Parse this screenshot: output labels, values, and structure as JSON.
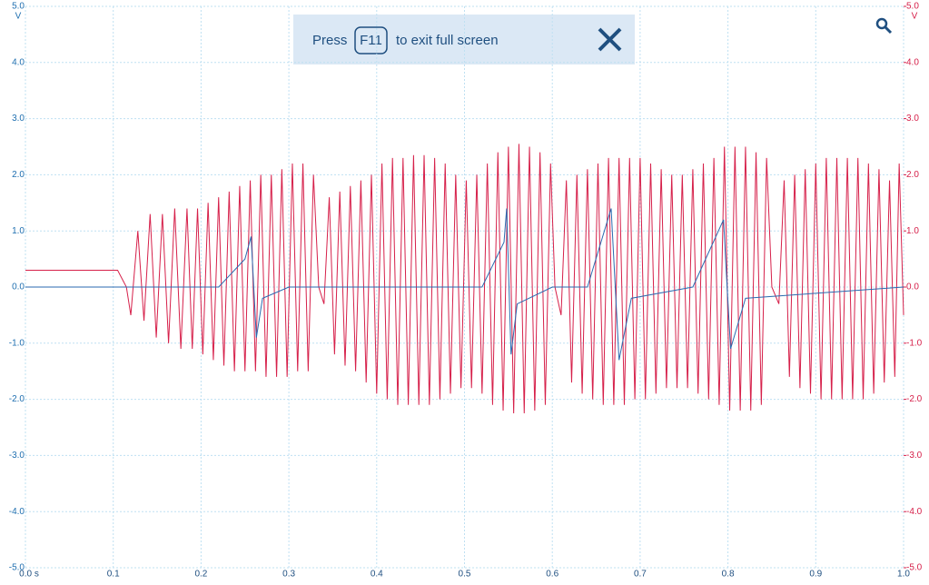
{
  "chart_data": {
    "type": "line",
    "xlim": [
      0,
      1
    ],
    "xticks": [
      {
        "value": 0,
        "label": "0.0 s"
      },
      0.1,
      0.2,
      0.3,
      0.4,
      0.5,
      0.6,
      0.7,
      0.8,
      0.9,
      {
        "value": 1,
        "label": "1.0"
      }
    ],
    "ylim": [
      -5,
      5
    ],
    "yticks": [
      {
        "value": 5,
        "label": "5.0"
      },
      {
        "value": 4,
        "label": "4.0"
      },
      {
        "value": 3,
        "label": "3.0"
      },
      {
        "value": 2,
        "label": "2.0"
      },
      {
        "value": 1,
        "label": "1.0"
      },
      {
        "value": 0,
        "label": "0.0"
      },
      {
        "value": -1,
        "label": "-1.0"
      },
      {
        "value": -2,
        "label": "-2.0"
      },
      {
        "value": -3,
        "label": "-3.0"
      },
      {
        "value": -4,
        "label": "-4.0"
      },
      {
        "value": -5,
        "label": "-5.0"
      }
    ],
    "y2lim": [
      -5,
      5
    ],
    "y2ticks": [
      {
        "value": 5,
        "label": "5.0"
      },
      {
        "value": 4,
        "label": "4.0"
      },
      {
        "value": 3,
        "label": "3.0"
      },
      {
        "value": 2,
        "label": "2.0"
      },
      {
        "value": 1,
        "label": "1.0"
      },
      {
        "value": 0,
        "label": "0.0"
      },
      {
        "value": -1,
        "label": "-1.0"
      },
      {
        "value": -2,
        "label": "-2.0"
      },
      {
        "value": -3,
        "label": "-3.0"
      },
      {
        "value": -4,
        "label": "-4.0"
      },
      {
        "value": -5,
        "label": "-5.0"
      }
    ],
    "y_unit": "V",
    "y2_unit": "V",
    "grid": true,
    "series": [
      {
        "color": "#d6204a",
        "axis": "y2",
        "x": [
          0,
          0.1,
          0.105,
          0.115,
          0.12,
          0.128,
          0.135,
          0.142,
          0.149,
          0.156,
          0.163,
          0.17,
          0.177,
          0.184,
          0.19,
          0.196,
          0.202,
          0.208,
          0.214,
          0.22,
          0.226,
          0.232,
          0.238,
          0.244,
          0.25,
          0.256,
          0.262,
          0.268,
          0.274,
          0.28,
          0.286,
          0.292,
          0.298,
          0.304,
          0.31,
          0.316,
          0.322,
          0.328,
          0.334,
          0.34,
          0.346,
          0.352,
          0.358,
          0.364,
          0.37,
          0.376,
          0.382,
          0.388,
          0.394,
          0.4,
          0.406,
          0.412,
          0.418,
          0.424,
          0.43,
          0.436,
          0.442,
          0.448,
          0.454,
          0.46,
          0.466,
          0.472,
          0.478,
          0.484,
          0.49,
          0.496,
          0.502,
          0.508,
          0.514,
          0.52,
          0.526,
          0.532,
          0.538,
          0.544,
          0.55,
          0.556,
          0.562,
          0.568,
          0.574,
          0.58,
          0.586,
          0.592,
          0.598,
          0.603,
          0.61,
          0.616,
          0.622,
          0.628,
          0.634,
          0.64,
          0.646,
          0.652,
          0.658,
          0.664,
          0.67,
          0.676,
          0.682,
          0.688,
          0.694,
          0.7,
          0.706,
          0.712,
          0.718,
          0.724,
          0.73,
          0.736,
          0.742,
          0.748,
          0.754,
          0.76,
          0.766,
          0.772,
          0.778,
          0.784,
          0.79,
          0.796,
          0.802,
          0.808,
          0.814,
          0.82,
          0.826,
          0.832,
          0.838,
          0.844,
          0.85,
          0.858,
          0.864,
          0.87,
          0.876,
          0.882,
          0.888,
          0.894,
          0.9,
          0.906,
          0.912,
          0.918,
          0.924,
          0.93,
          0.936,
          0.942,
          0.948,
          0.954,
          0.96,
          0.966,
          0.972,
          0.978,
          0.984,
          0.99,
          0.995,
          1.0
        ],
        "values": [
          0.3,
          0.3,
          0.3,
          0,
          -0.5,
          1.0,
          -0.6,
          1.3,
          -0.9,
          1.3,
          -1.0,
          1.4,
          -1.1,
          1.4,
          -1.1,
          1.4,
          -1.2,
          1.5,
          -1.3,
          1.6,
          -1.4,
          1.7,
          -1.5,
          1.8,
          -1.5,
          1.9,
          -1.5,
          2.0,
          -1.6,
          2.0,
          -1.6,
          2.1,
          -1.6,
          2.2,
          -1.5,
          2.2,
          -1.5,
          2.0,
          0,
          -0.3,
          1.6,
          -1.2,
          1.7,
          -1.4,
          1.8,
          -1.5,
          1.9,
          -1.7,
          2.0,
          -1.9,
          2.2,
          -2.0,
          2.3,
          -2.1,
          2.3,
          -2.1,
          2.35,
          -2.1,
          2.35,
          -2.1,
          2.3,
          -2.0,
          2.2,
          -1.9,
          2.0,
          -1.8,
          1.9,
          -1.8,
          2.0,
          -1.9,
          2.2,
          -2.1,
          2.4,
          -2.2,
          2.5,
          -2.25,
          2.55,
          -2.25,
          2.5,
          -2.2,
          2.4,
          -2.1,
          2.2,
          0,
          -0.5,
          1.9,
          -1.7,
          2.0,
          -1.9,
          2.1,
          -2.0,
          2.2,
          -2.1,
          2.3,
          -2.1,
          2.3,
          -2.1,
          2.3,
          -2.0,
          2.3,
          -2.0,
          2.2,
          -1.9,
          2.1,
          -1.8,
          2.0,
          -1.8,
          2.0,
          -1.8,
          2.1,
          -1.9,
          2.2,
          -2.0,
          2.3,
          -2.1,
          2.5,
          -2.2,
          2.5,
          -2.2,
          2.5,
          -2.2,
          2.4,
          -2.1,
          2.3,
          0,
          -0.3,
          1.9,
          -1.6,
          2.0,
          -1.8,
          2.1,
          -1.9,
          2.2,
          -2.0,
          2.3,
          -2.0,
          2.3,
          -2.0,
          2.3,
          -2.0,
          2.3,
          -2.0,
          2.2,
          -1.9,
          2.1,
          -1.7,
          1.9,
          -1.6,
          2.2,
          -0.5
        ]
      },
      {
        "color": "#2a6ab0",
        "x": [
          0,
          0.22,
          0.25,
          0.257,
          0.263,
          0.27,
          0.3,
          0.52,
          0.545,
          0.548,
          0.553,
          0.56,
          0.6,
          0.64,
          0.667,
          0.671,
          0.676,
          0.69,
          0.76,
          0.795,
          0.798,
          0.803,
          0.82,
          1.0
        ],
        "values": [
          0,
          0,
          0.5,
          0.9,
          -0.9,
          -0.2,
          0,
          0,
          0.8,
          1.4,
          -1.2,
          -0.3,
          0,
          0,
          1.4,
          0.2,
          -1.3,
          -0.2,
          0,
          1.2,
          0.3,
          -1.1,
          -0.2,
          0
        ]
      }
    ]
  },
  "banner": {
    "press": "Press",
    "key": "F11",
    "rest": "to exit full screen"
  }
}
